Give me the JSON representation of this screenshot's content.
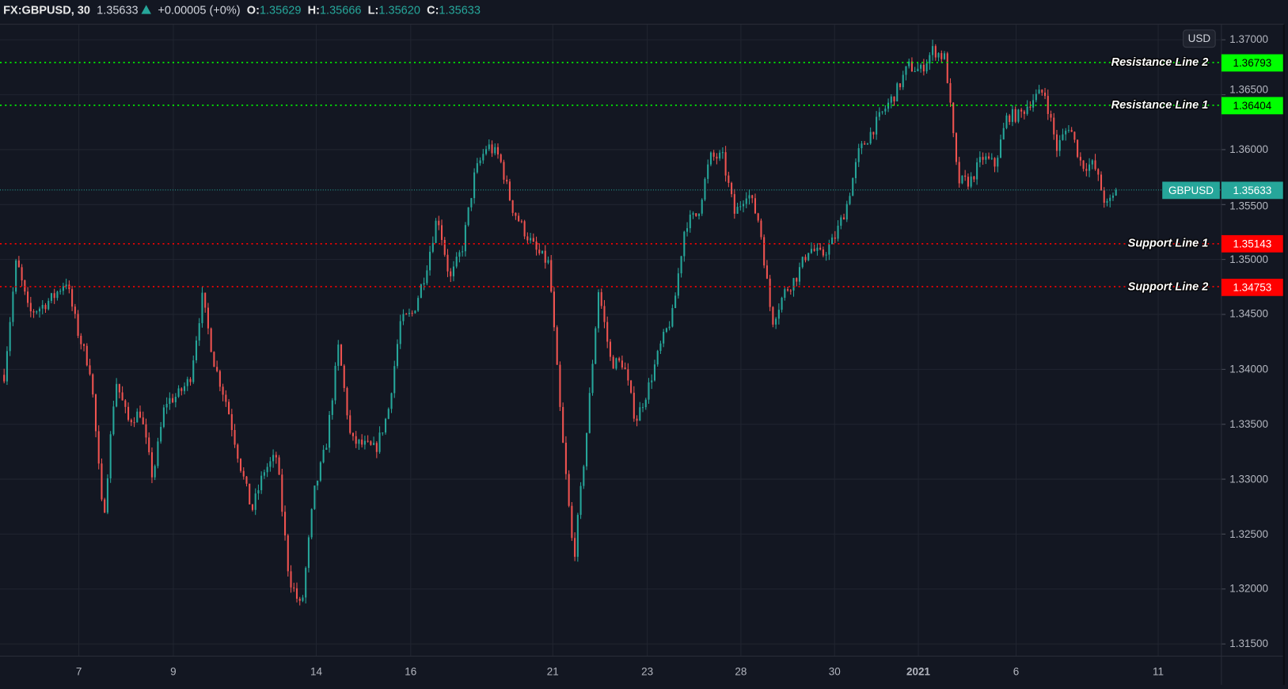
{
  "header": {
    "symbol": "FX:GBPUSD, 30",
    "last": "1.35633",
    "change": "+0.00005 (+0%)",
    "o_label": "O:",
    "o": "1.35629",
    "h_label": "H:",
    "h": "1.35666",
    "l_label": "L:",
    "l": "1.35620",
    "c_label": "C:",
    "c": "1.35633",
    "direction_icon": "triangle-up-icon"
  },
  "currency_button": "USD",
  "symbol_tag": "GBPUSD",
  "colors": {
    "background": "#131722",
    "up": "#26a69a",
    "down": "#ef5350",
    "resistance": "#00ff00",
    "support": "#ff0000",
    "last_price": "#26a69a"
  },
  "chart_data": {
    "type": "candlestick",
    "interval": "30",
    "symbol": "FX:GBPUSD",
    "ylim": [
      1.3135,
      1.3715
    ],
    "y_ticks": [
      "1.31500",
      "1.32000",
      "1.32500",
      "1.33000",
      "1.33500",
      "1.34000",
      "1.34500",
      "1.35000",
      "1.35500",
      "1.36000",
      "1.36500",
      "1.37000"
    ],
    "x_ticks": [
      "7",
      "9",
      "14",
      "16",
      "21",
      "23",
      "28",
      "30",
      "2021",
      "6",
      "11"
    ],
    "grid": true,
    "last_price": 1.35633,
    "approx_close_path": [
      1.3395,
      1.35,
      1.3451,
      1.3457,
      1.3466,
      1.3481,
      1.3432,
      1.3398,
      1.326,
      1.3391,
      1.3353,
      1.3361,
      1.3301,
      1.337,
      1.3376,
      1.3391,
      1.3465,
      1.3404,
      1.3368,
      1.3316,
      1.3271,
      1.3308,
      1.3321,
      1.3211,
      1.3181,
      1.3286,
      1.3331,
      1.3421,
      1.3335,
      1.3331,
      1.3327,
      1.3361,
      1.3443,
      1.3451,
      1.3488,
      1.3541,
      1.3481,
      1.3511,
      1.3578,
      1.3604,
      1.3593,
      1.3548,
      1.3526,
      1.3507,
      1.3496,
      1.3346,
      1.3226,
      1.3338,
      1.3473,
      1.3406,
      1.3406,
      1.3353,
      1.3383,
      1.3421,
      1.3451,
      1.3533,
      1.3541,
      1.3593,
      1.3593,
      1.3541,
      1.3563,
      1.3533,
      1.3443,
      1.347,
      1.3485,
      1.3511,
      1.3503,
      1.3518,
      1.3548,
      1.3597,
      1.3616,
      1.3635,
      1.3652,
      1.3676,
      1.3672,
      1.3691,
      1.3683,
      1.3571,
      1.3571,
      1.3593,
      1.3586,
      1.3631,
      1.3631,
      1.3646,
      1.3653,
      1.3601,
      1.3623,
      1.3586,
      1.3586,
      1.3548,
      1.35633
    ],
    "horizontal_lines": [
      {
        "label": "Resistance Line 2",
        "price": 1.36793,
        "price_text": "1.36793",
        "kind": "resistance"
      },
      {
        "label": "Resistance Line 1",
        "price": 1.36404,
        "price_text": "1.36404",
        "kind": "resistance"
      },
      {
        "label": "Support Line 1",
        "price": 1.35143,
        "price_text": "1.35143",
        "kind": "support"
      },
      {
        "label": "Support Line 2",
        "price": 1.34753,
        "price_text": "1.34753",
        "kind": "support"
      }
    ]
  }
}
